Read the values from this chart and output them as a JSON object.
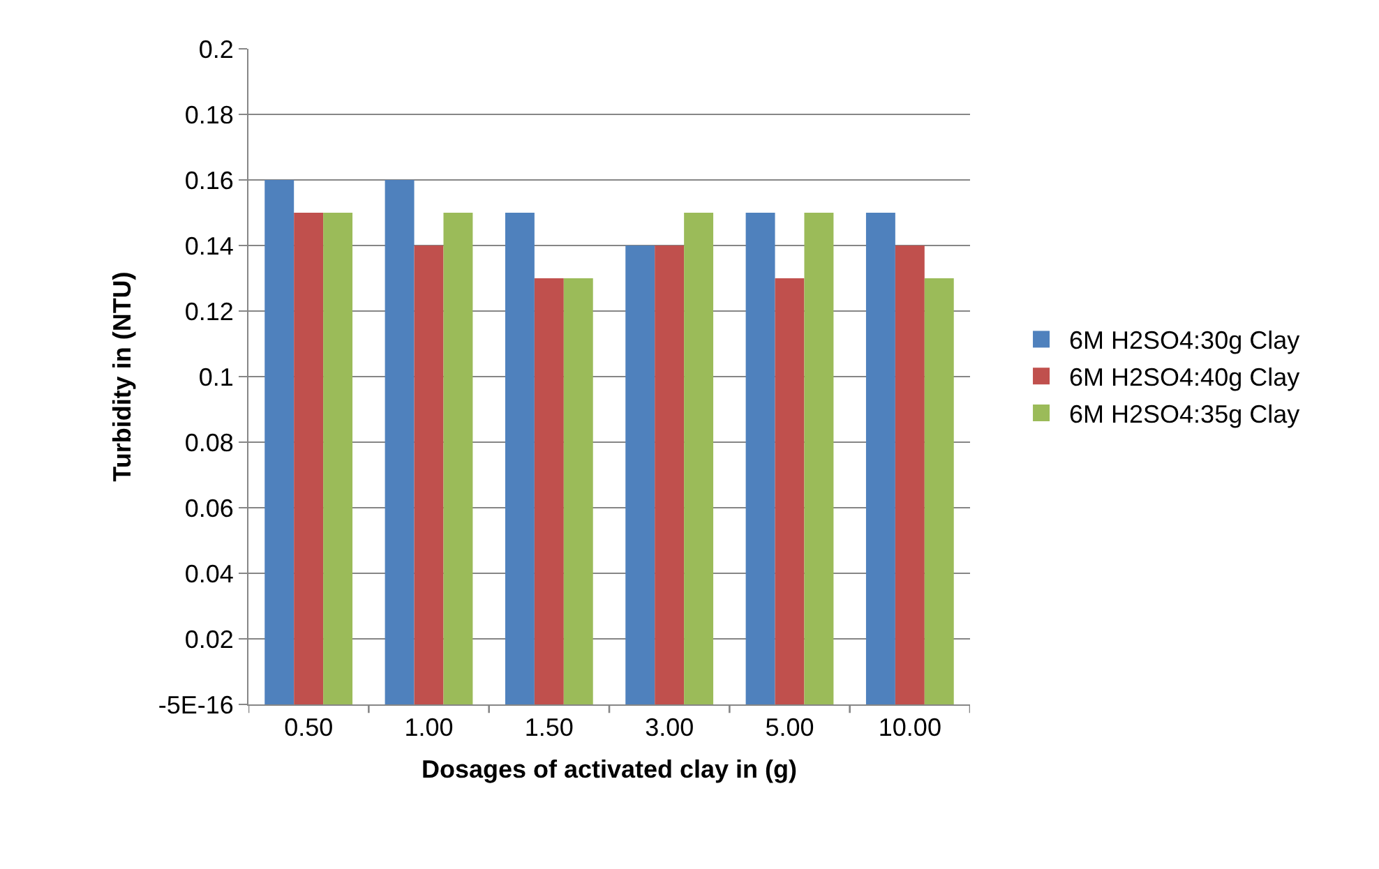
{
  "chart_data": {
    "type": "bar",
    "xlabel": "Dosages of activated clay in (g)",
    "ylabel": "Turbidity in (NTU)",
    "categories": [
      "0.50",
      "1.00",
      "1.50",
      "3.00",
      "5.00",
      "10.00"
    ],
    "series": [
      {
        "name": "6M H2SO4:30g Clay",
        "color": "#4f81bd",
        "values": [
          0.16,
          0.16,
          0.15,
          0.14,
          0.15,
          0.15
        ]
      },
      {
        "name": "6M H2SO4:40g Clay",
        "color": "#c0504d",
        "values": [
          0.15,
          0.14,
          0.13,
          0.14,
          0.13,
          0.14
        ]
      },
      {
        "name": "6M H2SO4:35g Clay",
        "color": "#9bbb59",
        "values": [
          0.15,
          0.15,
          0.13,
          0.15,
          0.15,
          0.13
        ]
      }
    ],
    "ylim": [
      0,
      0.2
    ],
    "yticks": [
      {
        "value": 0,
        "label": "-5E-16"
      },
      0.02,
      0.04,
      0.06,
      0.08,
      0.1,
      0.12,
      0.14,
      0.16,
      0.18,
      0.2
    ],
    "grid": "y",
    "legend": "right"
  }
}
